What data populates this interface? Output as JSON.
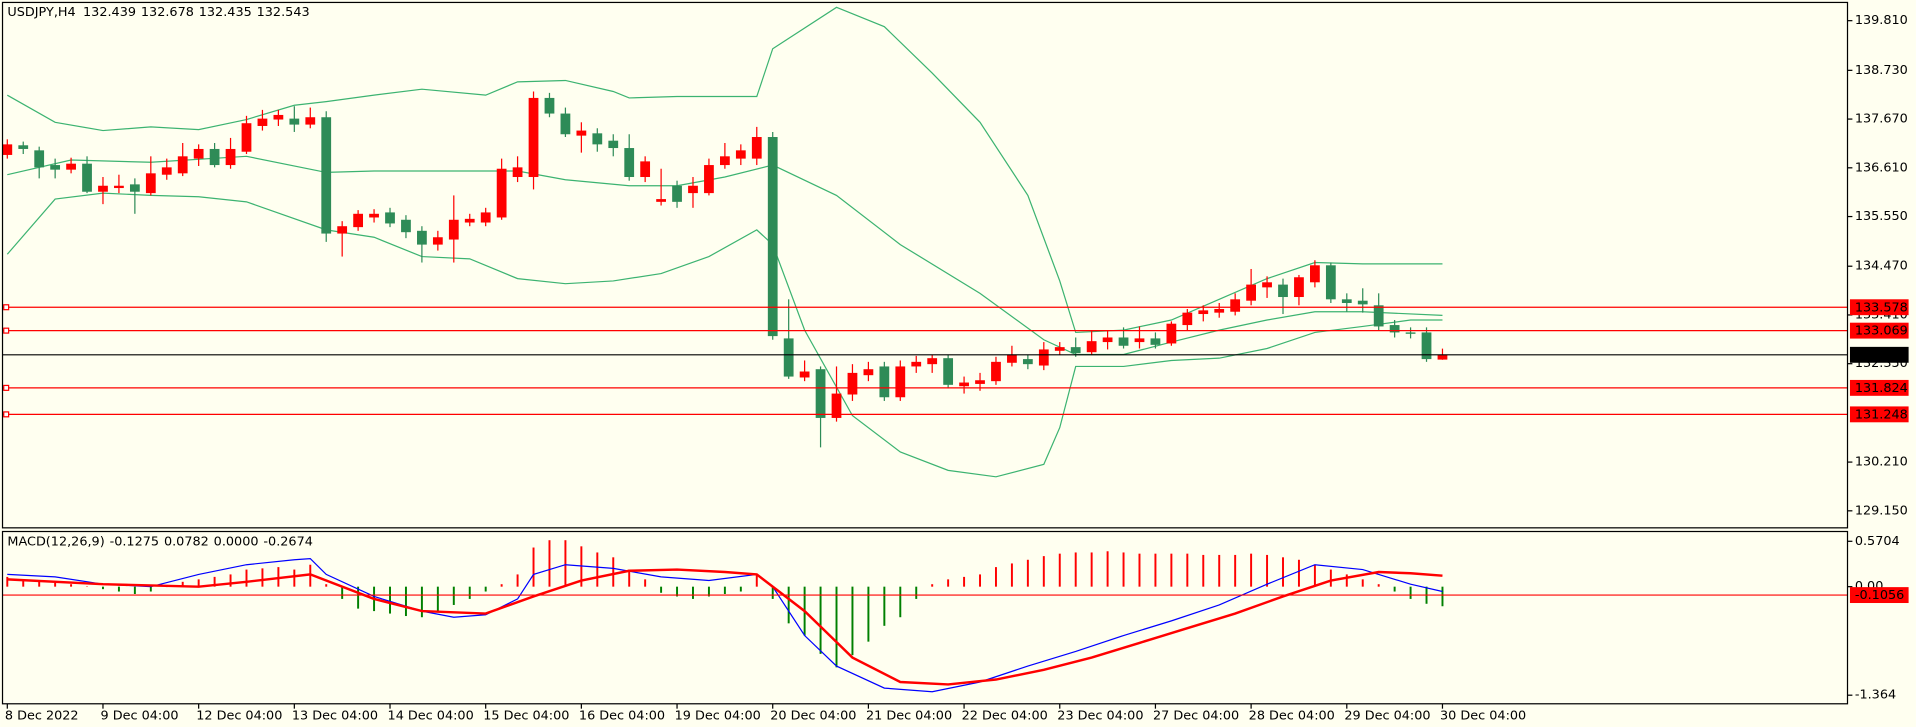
{
  "chart_data": [
    {
      "type": "candlestick",
      "title": "USDJPY,H4",
      "open": [
        136.89,
        137.1,
        136.99,
        136.67,
        136.57,
        136.7,
        136.09,
        136.17,
        136.25,
        136.06,
        136.46,
        136.49,
        136.81,
        137.02,
        136.67,
        136.96,
        137.52,
        137.66,
        137.68,
        137.55,
        137.71,
        135.18,
        135.32,
        135.53,
        135.64,
        135.48,
        135.24,
        134.94,
        135.05,
        135.42,
        135.42,
        135.53,
        136.41,
        136.41,
        138.13,
        137.79,
        137.31,
        137.36,
        137.2,
        137.04,
        136.41,
        135.87,
        136.22,
        136.06,
        136.06,
        136.67,
        136.81,
        136.81,
        137.28,
        132.9,
        132.05,
        132.23,
        131.17,
        131.68,
        132.1,
        132.29,
        131.62,
        132.29,
        132.34,
        132.47,
        131.86,
        131.91,
        131.97,
        132.37,
        132.45,
        132.31,
        132.63,
        132.71,
        132.6,
        132.82,
        132.92,
        132.82,
        132.9,
        132.79,
        133.19,
        133.43,
        133.46,
        133.48,
        133.72,
        134.01,
        134.07,
        133.8,
        134.12,
        134.49,
        133.75,
        133.72,
        133.62,
        133.19,
        133.03,
        133.03,
        132.439
      ],
      "high": [
        137.23,
        137.18,
        137.07,
        136.81,
        136.83,
        136.86,
        136.41,
        136.46,
        136.38,
        136.86,
        136.81,
        137.15,
        137.12,
        137.15,
        137.26,
        137.74,
        137.87,
        137.87,
        137.95,
        137.92,
        137.84,
        135.45,
        135.69,
        135.71,
        135.74,
        135.58,
        135.34,
        135.24,
        136.01,
        135.61,
        135.74,
        136.81,
        136.86,
        138.27,
        138.24,
        137.92,
        137.6,
        137.47,
        137.34,
        137.34,
        136.86,
        136.59,
        136.33,
        136.41,
        136.81,
        137.15,
        137.12,
        137.5,
        137.39,
        133.75,
        132.42,
        132.29,
        132.29,
        132.34,
        132.39,
        132.39,
        132.42,
        132.52,
        132.55,
        132.55,
        132.07,
        132.15,
        132.5,
        132.74,
        132.55,
        132.82,
        132.82,
        132.92,
        133.08,
        133.08,
        133.14,
        133.16,
        133.03,
        133.27,
        133.54,
        133.62,
        133.67,
        133.88,
        134.41,
        134.25,
        134.2,
        134.28,
        134.6,
        134.55,
        133.88,
        133.99,
        133.88,
        133.3,
        133.14,
        133.14,
        132.678
      ],
      "low": [
        136.81,
        136.91,
        136.38,
        136.38,
        136.49,
        136.06,
        135.82,
        136.06,
        135.61,
        136.01,
        136.35,
        136.43,
        136.65,
        136.62,
        136.59,
        136.91,
        137.42,
        137.52,
        137.39,
        137.47,
        135.0,
        134.68,
        135.24,
        135.42,
        135.32,
        135.08,
        134.55,
        134.81,
        134.55,
        135.34,
        135.34,
        135.48,
        136.3,
        136.14,
        137.71,
        137.28,
        136.94,
        136.96,
        136.86,
        136.33,
        136.3,
        135.79,
        135.74,
        135.74,
        136.01,
        136.59,
        136.67,
        136.67,
        132.87,
        132.02,
        131.97,
        130.53,
        131.09,
        131.54,
        131.97,
        131.54,
        131.54,
        132.15,
        132.15,
        131.81,
        131.7,
        131.76,
        131.89,
        132.29,
        132.23,
        132.21,
        132.55,
        132.5,
        132.55,
        132.66,
        132.68,
        132.68,
        132.68,
        132.74,
        133.08,
        133.27,
        133.35,
        133.4,
        133.62,
        133.78,
        133.43,
        133.62,
        134.01,
        133.67,
        133.48,
        133.46,
        133.08,
        132.92,
        132.9,
        132.39,
        132.435
      ],
      "close": [
        137.12,
        137.02,
        136.62,
        136.57,
        136.7,
        136.09,
        136.22,
        136.22,
        136.09,
        136.49,
        136.62,
        136.86,
        137.02,
        136.67,
        137.02,
        137.58,
        137.68,
        137.76,
        137.55,
        137.71,
        135.18,
        135.34,
        135.61,
        135.61,
        135.4,
        135.21,
        134.94,
        135.1,
        135.48,
        135.5,
        135.64,
        136.59,
        136.62,
        138.13,
        137.79,
        137.34,
        137.42,
        137.12,
        137.04,
        136.41,
        136.75,
        135.93,
        135.87,
        136.22,
        136.67,
        136.86,
        136.99,
        137.28,
        132.95,
        132.07,
        132.18,
        131.17,
        131.7,
        132.15,
        132.23,
        131.62,
        132.29,
        132.39,
        132.47,
        131.89,
        131.94,
        131.99,
        132.39,
        132.55,
        132.34,
        132.66,
        132.71,
        132.58,
        132.84,
        132.92,
        132.74,
        132.9,
        132.76,
        133.22,
        133.46,
        133.51,
        133.54,
        133.75,
        134.07,
        134.12,
        133.8,
        134.23,
        134.49,
        133.75,
        133.67,
        133.64,
        133.16,
        133.03,
        133.0,
        132.45,
        132.543
      ],
      "up_color": "#ff0000",
      "down_color": "#2e8b57",
      "bands": [
        {
          "color": "#3cb371",
          "x": [
            0,
            3,
            6,
            9,
            12,
            15,
            18,
            20,
            23,
            26,
            30,
            32,
            35,
            38,
            39,
            42,
            47,
            48,
            52,
            55,
            58,
            61,
            64,
            66,
            67,
            70,
            73,
            76,
            79,
            82,
            85,
            90
          ],
          "values": [
            138.19,
            137.6,
            137.42,
            137.5,
            137.44,
            137.66,
            137.97,
            138.05,
            138.19,
            138.32,
            138.19,
            138.48,
            138.51,
            138.27,
            138.13,
            138.16,
            138.16,
            139.2,
            140.1,
            139.68,
            138.67,
            137.6,
            136.01,
            134.15,
            133.03,
            133.08,
            133.3,
            133.75,
            134.2,
            134.55,
            134.52,
            134.52
          ]
        },
        {
          "color": "#3cb371",
          "x": [
            0,
            4,
            9,
            15,
            20,
            23,
            27,
            32,
            35,
            39,
            42,
            45,
            48,
            52,
            56,
            61,
            65,
            67,
            70,
            73,
            76,
            79,
            82,
            85,
            90
          ],
          "values": [
            136.46,
            136.78,
            136.73,
            136.86,
            136.51,
            136.54,
            136.54,
            136.54,
            136.35,
            136.22,
            136.22,
            136.41,
            136.67,
            136.01,
            134.94,
            133.88,
            132.87,
            132.55,
            132.55,
            132.82,
            133.08,
            133.3,
            133.48,
            133.48,
            133.4
          ]
        },
        {
          "color": "#3cb371",
          "x": [
            0,
            3,
            6,
            9,
            12,
            15,
            20,
            23,
            26,
            29,
            32,
            35,
            38,
            41,
            44,
            47,
            48,
            50,
            53,
            56,
            59,
            62,
            65,
            66,
            67,
            70,
            73,
            76,
            79,
            82,
            85,
            88,
            90
          ],
          "values": [
            134.73,
            135.93,
            136.06,
            136.01,
            135.98,
            135.87,
            135.26,
            135.1,
            134.68,
            134.63,
            134.2,
            134.09,
            134.15,
            134.31,
            134.68,
            135.26,
            134.94,
            133.08,
            131.22,
            130.43,
            130.03,
            129.89,
            130.16,
            130.96,
            132.29,
            132.29,
            132.42,
            132.47,
            132.68,
            133.03,
            133.16,
            133.3,
            133.3
          ]
        }
      ],
      "levels": [
        133.578,
        133.069,
        131.824,
        131.248
      ],
      "level_color": "#ff0000",
      "xlim": [
        -0.3,
        115.4
      ],
      "ylim": [
        128.78,
        140.18
      ],
      "yticks": [
        {
          "value": 139.81,
          "label": "139.810"
        },
        {
          "value": 138.73,
          "label": "138.730"
        },
        {
          "value": 137.67,
          "label": "137.670"
        },
        {
          "value": 136.61,
          "label": "136.610"
        },
        {
          "value": 135.55,
          "label": "135.550"
        },
        {
          "value": 134.47,
          "label": "134.470"
        },
        {
          "value": 133.41,
          "label": "133.410"
        },
        {
          "value": 132.35,
          "label": "132.350"
        },
        {
          "value": 130.21,
          "label": "130.210"
        },
        {
          "value": 129.15,
          "label": "129.150"
        }
      ],
      "xticks": [
        {
          "value": 0,
          "label": "8 Dec 2022"
        },
        {
          "value": 6,
          "label": "9 Dec 04:00"
        },
        {
          "value": 12,
          "label": "12 Dec 04:00"
        },
        {
          "value": 18,
          "label": "13 Dec 04:00"
        },
        {
          "value": 24,
          "label": "14 Dec 04:00"
        },
        {
          "value": 30,
          "label": "15 Dec 04:00"
        },
        {
          "value": 36,
          "label": "16 Dec 04:00"
        },
        {
          "value": 42,
          "label": "19 Dec 04:00"
        },
        {
          "value": 48,
          "label": "20 Dec 04:00"
        },
        {
          "value": 54,
          "label": "21 Dec 04:00"
        },
        {
          "value": 60,
          "label": "22 Dec 04:00"
        },
        {
          "value": 66,
          "label": "23 Dec 04:00"
        },
        {
          "value": 72,
          "label": "27 Dec 04:00"
        },
        {
          "value": 78,
          "label": "28 Dec 04:00"
        },
        {
          "value": 84,
          "label": "29 Dec 04:00"
        },
        {
          "value": 90,
          "label": "30 Dec 04:00"
        }
      ]
    },
    {
      "type": "macd",
      "title": "MACD(12,26,9)",
      "header_values": [
        -0.1275,
        0.0782,
        {
          "value": 0,
          "label": "0.0000"
        },
        -0.2674
      ],
      "values": [
        0.123,
        0.092,
        0.061,
        0.046,
        0.031,
        0.005,
        -0.031,
        -0.061,
        -0.092,
        -0.061,
        -0.005,
        0.061,
        0.092,
        0.123,
        0.154,
        0.215,
        0.23,
        0.246,
        0.215,
        0.276,
        0.031,
        -0.154,
        -0.276,
        -0.307,
        -0.338,
        -0.369,
        -0.384,
        -0.307,
        -0.23,
        -0.154,
        -0.061,
        0.031,
        0.154,
        0.492,
        0.584,
        0.584,
        0.507,
        0.43,
        0.369,
        0.215,
        0.092,
        -0.077,
        -0.123,
        -0.154,
        -0.123,
        -0.092,
        -0.061,
        0.154,
        -0.154,
        -0.461,
        -0.614,
        -0.845,
        -1.014,
        -0.86,
        -0.691,
        -0.492,
        -0.384,
        -0.154,
        0.031,
        0.092,
        0.123,
        0.154,
        0.246,
        0.292,
        0.338,
        0.384,
        0.415,
        0.43,
        0.43,
        0.445,
        0.43,
        0.415,
        0.415,
        0.415,
        0.415,
        0.399,
        0.399,
        0.399,
        0.415,
        0.399,
        0.369,
        0.338,
        0.276,
        0.215,
        0.154,
        0.092,
        0.031,
        -0.061,
        -0.154,
        -0.215,
        -0.246
      ],
      "color_positive": "#ff0000",
      "color_negative": "#008000",
      "lines": [
        {
          "color": "#0000ff",
          "width": 1,
          "x": [
            0,
            3,
            6,
            9,
            12,
            15,
            18,
            19,
            20,
            23,
            26,
            28,
            30,
            32,
            33,
            35,
            38,
            41,
            44,
            47,
            48,
            50,
            52,
            55,
            58,
            61,
            64,
            67,
            70,
            73,
            76,
            79,
            82,
            85,
            88,
            90
          ],
          "values": [
            0.154,
            0.123,
            0.031,
            0,
            0.154,
            0.276,
            0.338,
            0.353,
            0.154,
            -0.123,
            -0.307,
            -0.384,
            -0.353,
            -0.154,
            0.154,
            0.276,
            0.23,
            0.123,
            0.077,
            0.154,
            0,
            -0.614,
            -0.998,
            -1.275,
            -1.321,
            -1.198,
            -0.998,
            -0.814,
            -0.614,
            -0.43,
            -0.23,
            0.031,
            0.276,
            0.215,
            0.031,
            -0.061
          ]
        },
        {
          "color": "#ff0000",
          "width": 2,
          "x": [
            0,
            6,
            12,
            15,
            19,
            23,
            26,
            30,
            33,
            36,
            39,
            42,
            45,
            47,
            50,
            53,
            56,
            59,
            62,
            65,
            68,
            71,
            74,
            77,
            80,
            83,
            86,
            88,
            90
          ],
          "values": [
            0.092,
            0.031,
            0,
            0.061,
            0.154,
            -0.154,
            -0.307,
            -0.338,
            -0.123,
            0.077,
            0.2,
            0.215,
            0.184,
            0.154,
            -0.307,
            -0.891,
            -1.198,
            -1.229,
            -1.167,
            -1.045,
            -0.891,
            -0.707,
            -0.522,
            -0.338,
            -0.123,
            0.077,
            0.184,
            0.169,
            0.138
          ]
        }
      ],
      "level": -0.1056,
      "level_color": "#ff0000",
      "ylim": [
        -1.472,
        0.678
      ],
      "yticks": [
        0.5704,
        {
          "value": 0,
          "label": "0.00"
        },
        -1.364
      ]
    }
  ]
}
